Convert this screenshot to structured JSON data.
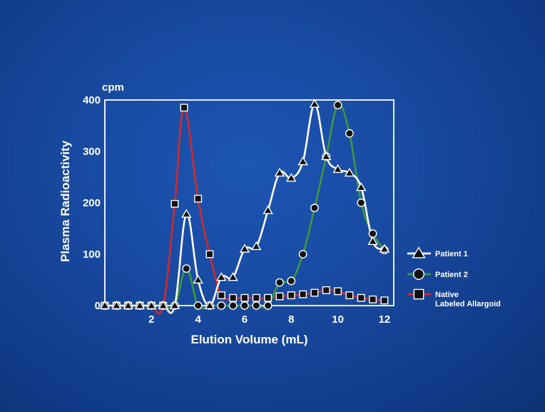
{
  "chart_data": {
    "type": "line",
    "unit_label": "cpm",
    "ylabel": "Plasma Radioactivity",
    "xlabel": "Elution Volume (mL)",
    "xlim": [
      0,
      12
    ],
    "ylim": [
      0,
      400
    ],
    "x_ticks": [
      2,
      4,
      6,
      8,
      10,
      12
    ],
    "y_ticks": [
      0,
      100,
      200,
      300,
      400
    ],
    "grid": false,
    "legend_position": "right",
    "series": [
      {
        "name": "Patient 1",
        "marker": "triangle",
        "color": "#ffffff",
        "points": [
          [
            0,
            0
          ],
          [
            0.5,
            0
          ],
          [
            1,
            0
          ],
          [
            1.5,
            0
          ],
          [
            2,
            0
          ],
          [
            2.5,
            0
          ],
          [
            3,
            0
          ],
          [
            3.5,
            178
          ],
          [
            4,
            50
          ],
          [
            4.5,
            0
          ],
          [
            5,
            55
          ],
          [
            5.5,
            55
          ],
          [
            6,
            110
          ],
          [
            6.5,
            115
          ],
          [
            7,
            185
          ],
          [
            7.5,
            258
          ],
          [
            8,
            248
          ],
          [
            8.5,
            280
          ],
          [
            9,
            392
          ],
          [
            9.5,
            290
          ],
          [
            10,
            265
          ],
          [
            10.5,
            258
          ],
          [
            11,
            230
          ],
          [
            11.5,
            125
          ],
          [
            12,
            110
          ]
        ]
      },
      {
        "name": "Patient 2",
        "marker": "circle",
        "color": "#3c9a3c",
        "points": [
          [
            0,
            0
          ],
          [
            0.5,
            0
          ],
          [
            1,
            0
          ],
          [
            1.5,
            0
          ],
          [
            2,
            0
          ],
          [
            2.5,
            0
          ],
          [
            3,
            0
          ],
          [
            3.5,
            72
          ],
          [
            4,
            0
          ],
          [
            4.5,
            0
          ],
          [
            5,
            0
          ],
          [
            5.5,
            0
          ],
          [
            6,
            0
          ],
          [
            6.5,
            0
          ],
          [
            7,
            0
          ],
          [
            7.5,
            45
          ],
          [
            8,
            48
          ],
          [
            8.5,
            100
          ],
          [
            9,
            190
          ],
          [
            9.5,
            290
          ],
          [
            10,
            390
          ],
          [
            10.5,
            335
          ],
          [
            11,
            200
          ],
          [
            11.5,
            140
          ],
          [
            12,
            108
          ]
        ]
      },
      {
        "name": "Native Labeled Allargoid",
        "legend_lines": [
          "Native",
          "Labeled Allargoid"
        ],
        "marker": "square",
        "color": "#d42a2a",
        "points": [
          [
            0,
            0
          ],
          [
            0.5,
            0
          ],
          [
            1,
            0
          ],
          [
            1.5,
            0
          ],
          [
            2,
            0
          ],
          [
            2.5,
            0
          ],
          [
            3,
            198
          ],
          [
            3.4,
            385
          ],
          [
            4,
            208
          ],
          [
            4.5,
            100
          ],
          [
            5,
            20
          ],
          [
            5.5,
            15
          ],
          [
            6,
            15
          ],
          [
            6.5,
            15
          ],
          [
            7,
            15
          ],
          [
            7.5,
            18
          ],
          [
            8,
            20
          ],
          [
            8.5,
            22
          ],
          [
            9,
            25
          ],
          [
            9.5,
            30
          ],
          [
            10,
            28
          ],
          [
            10.5,
            20
          ],
          [
            11,
            15
          ],
          [
            11.5,
            12
          ],
          [
            12,
            10
          ]
        ]
      }
    ]
  }
}
